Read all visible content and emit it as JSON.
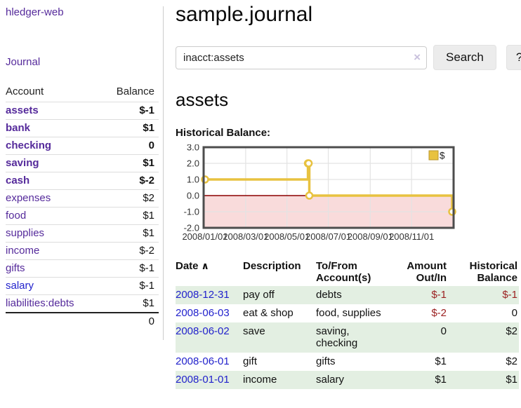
{
  "brand": "hledger-web",
  "sidebar": {
    "journal_link": "Journal",
    "headers": {
      "account": "Account",
      "balance": "Balance"
    },
    "accounts": [
      {
        "name": "assets",
        "balance": "$-1"
      },
      {
        "name": "bank",
        "balance": "$1"
      },
      {
        "name": "checking",
        "balance": "0"
      },
      {
        "name": "saving",
        "balance": "$1"
      },
      {
        "name": "cash",
        "balance": "$-2"
      },
      {
        "name": "expenses",
        "balance": "$2"
      },
      {
        "name": "food",
        "balance": "$1"
      },
      {
        "name": "supplies",
        "balance": "$1"
      },
      {
        "name": "income",
        "balance": "$-2"
      },
      {
        "name": "gifts",
        "balance": "$-1"
      },
      {
        "name": "salary",
        "balance": "$-1"
      },
      {
        "name": "liabilities:debts",
        "balance": "$1"
      }
    ],
    "total": "0"
  },
  "main": {
    "title": "sample.journal",
    "search": {
      "value": "inacct:assets",
      "clear_icon": "×",
      "button_label": "Search",
      "help_label": "?"
    },
    "account_heading": "assets",
    "chart_label": "Historical Balance:",
    "chart_data": {
      "type": "line",
      "step": true,
      "title": "Historical Balance",
      "legend": "$",
      "points": [
        [
          "2008-01-01",
          1
        ],
        [
          "2008-06-01",
          2
        ],
        [
          "2008-06-02",
          2
        ],
        [
          "2008-06-03",
          0
        ],
        [
          "2008-12-31",
          -1
        ]
      ],
      "xlim": [
        "2008-01-01",
        "2008-12-31"
      ],
      "ylim": [
        -2,
        3
      ],
      "yticks": [
        "3.0",
        "2.0",
        "1.0",
        "0.0",
        "-1.0",
        "-2.0"
      ],
      "xticks": [
        "2008/01/01",
        "2008/03/01",
        "2008/05/01",
        "2008/07/01",
        "2008/09/01",
        "2008/11/01"
      ],
      "grid": true,
      "legend_position": "top-right",
      "colors": {
        "line": "#e8c240",
        "marker_fill": "#ffffff",
        "negative_region": "#f9dbdb",
        "zero_line": "#8b0000",
        "gridline": "#e3e3e3",
        "border": "#4d4d4d",
        "tick_text": "#333333"
      }
    },
    "register": {
      "headers": {
        "date": "Date",
        "sort_indicator": "∧",
        "description": "Description",
        "to_from": "To/From Account(s)",
        "amount": "Amount Out/In",
        "balance": "Historical Balance"
      },
      "rows": [
        {
          "date": "2008-12-31",
          "description": "pay off",
          "to_from": "debts",
          "amount": "$-1",
          "balance": "$-1"
        },
        {
          "date": "2008-06-03",
          "description": "eat & shop",
          "to_from": "food, supplies",
          "amount": "$-2",
          "balance": "0"
        },
        {
          "date": "2008-06-02",
          "description": "save",
          "to_from": "saving, checking",
          "amount": "0",
          "balance": "$2"
        },
        {
          "date": "2008-06-01",
          "description": "gift",
          "to_from": "gifts",
          "amount": "$1",
          "balance": "$2"
        },
        {
          "date": "2008-01-01",
          "description": "income",
          "to_from": "salary",
          "amount": "$1",
          "balance": "$1"
        }
      ]
    }
  },
  "colors": {
    "link_purple": "#552a9b",
    "link_blue": "#2222cc",
    "negative_bold": "#8c1a1a",
    "negative_light": "#b97373",
    "negative_table": "#9c2222",
    "row_green": "#e3efe2"
  }
}
